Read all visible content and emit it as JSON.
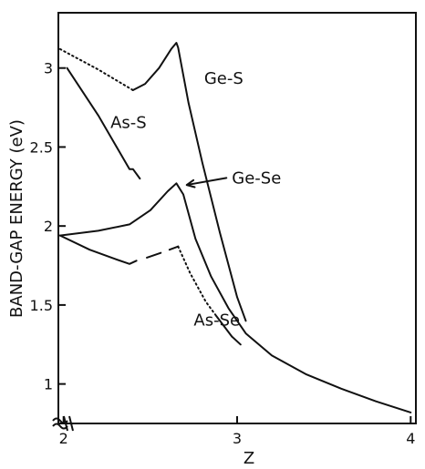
{
  "chart_data": {
    "type": "line",
    "xlabel": "Z",
    "ylabel": "BAND-GAP ENERGY (eV)",
    "xlim": [
      1.97,
      4.03
    ],
    "ylim": [
      0.75,
      3.35
    ],
    "x_ticks": [
      2,
      3,
      4
    ],
    "x_tick_labels": [
      "2",
      "3",
      "4"
    ],
    "y_ticks": [
      1,
      1.5,
      2,
      2.5,
      3
    ],
    "y_tick_labels": [
      "1",
      "1.5",
      "2",
      "2.5",
      "3"
    ],
    "axis_break_marks": true,
    "grid": false,
    "series": [
      {
        "name": "Ge-S",
        "segments": [
          {
            "style": "dotted",
            "points": [
              [
                1.98,
                3.12
              ],
              [
                2.2,
                2.99
              ],
              [
                2.4,
                2.86
              ]
            ]
          },
          {
            "style": "solid",
            "points": [
              [
                2.4,
                2.86
              ],
              [
                2.47,
                2.9
              ],
              [
                2.55,
                3.0
              ],
              [
                2.62,
                3.12
              ],
              [
                2.65,
                3.16
              ],
              [
                2.66,
                3.13
              ],
              [
                2.72,
                2.78
              ],
              [
                2.8,
                2.4
              ],
              [
                2.9,
                1.96
              ],
              [
                3.0,
                1.55
              ],
              [
                3.05,
                1.4
              ]
            ]
          }
        ],
        "label_pos": [
          2.81,
          2.9
        ]
      },
      {
        "name": "As-S",
        "segments": [
          {
            "style": "solid",
            "points": [
              [
                2.02,
                3.0
              ],
              [
                2.2,
                2.7
              ],
              [
                2.38,
                2.36
              ],
              [
                2.4,
                2.36
              ],
              [
                2.44,
                2.3
              ]
            ]
          }
        ],
        "label_pos": [
          2.27,
          2.62
        ]
      },
      {
        "name": "Ge-Se",
        "segments": [
          {
            "style": "solid",
            "points": [
              [
                1.98,
                1.94
              ],
              [
                2.2,
                1.97
              ],
              [
                2.38,
                2.01
              ],
              [
                2.5,
                2.1
              ],
              [
                2.6,
                2.22
              ],
              [
                2.65,
                2.27
              ],
              [
                2.69,
                2.2
              ],
              [
                2.76,
                1.92
              ],
              [
                2.85,
                1.68
              ],
              [
                2.95,
                1.48
              ],
              [
                3.05,
                1.32
              ],
              [
                3.2,
                1.18
              ],
              [
                3.4,
                1.06
              ],
              [
                3.6,
                0.97
              ],
              [
                3.8,
                0.89
              ],
              [
                4.0,
                0.82
              ]
            ]
          }
        ],
        "label_pos": [
          2.97,
          2.27
        ],
        "arrow_to": [
          2.71,
          2.26
        ]
      },
      {
        "name": "As-Se",
        "segments": [
          {
            "style": "solid",
            "points": [
              [
                1.98,
                1.94
              ],
              [
                2.15,
                1.85
              ],
              [
                2.3,
                1.79
              ],
              [
                2.38,
                1.76
              ],
              [
                2.42,
                1.78
              ]
            ]
          },
          {
            "style": "solid",
            "points": [
              [
                2.48,
                1.8
              ],
              [
                2.56,
                1.83
              ]
            ]
          },
          {
            "style": "solid",
            "points": [
              [
                2.61,
                1.85
              ],
              [
                2.66,
                1.87
              ]
            ]
          },
          {
            "style": "dotted",
            "points": [
              [
                2.66,
                1.87
              ],
              [
                2.73,
                1.7
              ],
              [
                2.82,
                1.52
              ],
              [
                2.88,
                1.43
              ]
            ]
          },
          {
            "style": "solid",
            "points": [
              [
                2.88,
                1.43
              ],
              [
                2.97,
                1.3
              ],
              [
                3.02,
                1.25
              ]
            ]
          }
        ],
        "label_pos": [
          2.75,
          1.37
        ]
      }
    ]
  }
}
